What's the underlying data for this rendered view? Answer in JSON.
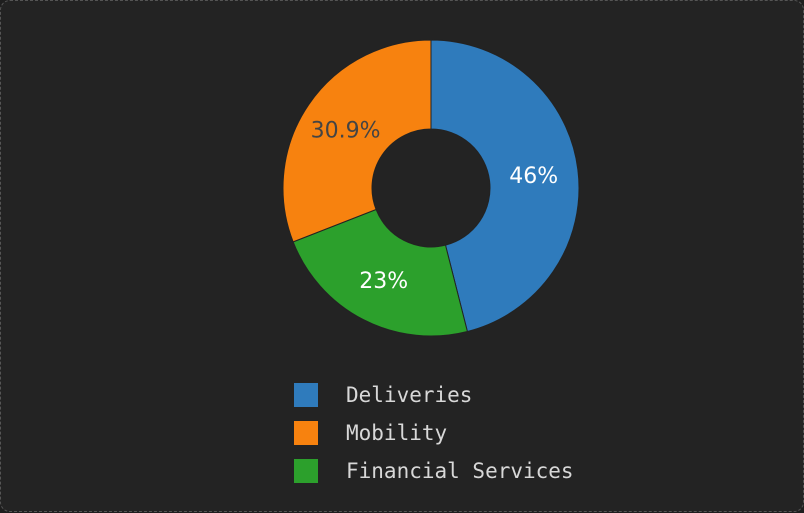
{
  "chart_data": {
    "type": "pie",
    "variant": "donut",
    "title": "",
    "slices": [
      {
        "label": "Deliveries",
        "value": 46,
        "display": "46%",
        "color": "#2f7bbc",
        "label_color": "#ffffff"
      },
      {
        "label": "Financial Services",
        "value": 23,
        "display": "23%",
        "color": "#2ca02c",
        "label_color": "#ffffff"
      },
      {
        "label": "Mobility",
        "value": 30.9,
        "display": "30.9%",
        "color": "#f7820f",
        "label_color": "#444444"
      }
    ],
    "legend": {
      "placement": "bottom",
      "entries": [
        {
          "label": "Deliveries",
          "color": "#2f7bbc"
        },
        {
          "label": "Mobility",
          "color": "#f7820f"
        },
        {
          "label": "Financial Services",
          "color": "#2ca02c"
        }
      ]
    },
    "start_angle": "top",
    "direction": "clockwise"
  }
}
